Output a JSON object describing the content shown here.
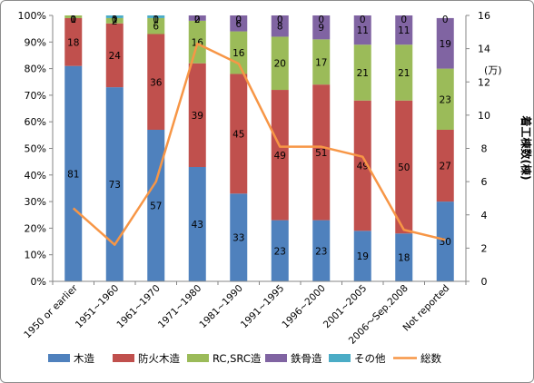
{
  "chart_data": {
    "type": "bar",
    "stacked": true,
    "categories": [
      "1950 or earlier",
      "1951~1960",
      "1961~1970",
      "1971~1980",
      "1981~1990",
      "1991~1995",
      "1996~2000",
      "2001~2005",
      "2006～Sep.2008",
      "Not reported"
    ],
    "series": [
      {
        "name": "木造",
        "color": "#4f81bd",
        "values": [
          81,
          73,
          57,
          43,
          33,
          23,
          23,
          19,
          18,
          30
        ]
      },
      {
        "name": "防火木造",
        "color": "#c0504d",
        "values": [
          18,
          24,
          36,
          39,
          45,
          49,
          51,
          49,
          50,
          27
        ]
      },
      {
        "name": "RC,SRC造",
        "color": "#9bbb59",
        "values": [
          1,
          2,
          6,
          16,
          16,
          20,
          17,
          21,
          21,
          23
        ]
      },
      {
        "name": "鉄骨造",
        "color": "#8064a2",
        "values": [
          0,
          0,
          0,
          2,
          6,
          8,
          9,
          11,
          11,
          19
        ]
      },
      {
        "name": "その他",
        "color": "#4bacc6",
        "values": [
          0,
          1,
          1,
          0,
          0,
          0,
          0,
          0,
          0,
          0
        ]
      }
    ],
    "line_series": {
      "name": "総数",
      "color": "#f79646",
      "axis": "right",
      "values": [
        4.4,
        2.2,
        6.0,
        14.3,
        13.1,
        8.1,
        8.1,
        7.5,
        3.1,
        2.5
      ]
    },
    "y_left": {
      "ticks": [
        "0%",
        "10%",
        "20%",
        "30%",
        "40%",
        "50%",
        "60%",
        "70%",
        "80%",
        "90%",
        "100%"
      ],
      "ylim": [
        0,
        100
      ]
    },
    "y_right": {
      "label": "着工棟数(棟)",
      "unit": "(万)",
      "ticks": [
        "0",
        "2",
        "4",
        "6",
        "8",
        "10",
        "12",
        "14",
        "16"
      ],
      "ylim": [
        0,
        16
      ]
    },
    "legend_position": "bottom",
    "grid": false
  }
}
